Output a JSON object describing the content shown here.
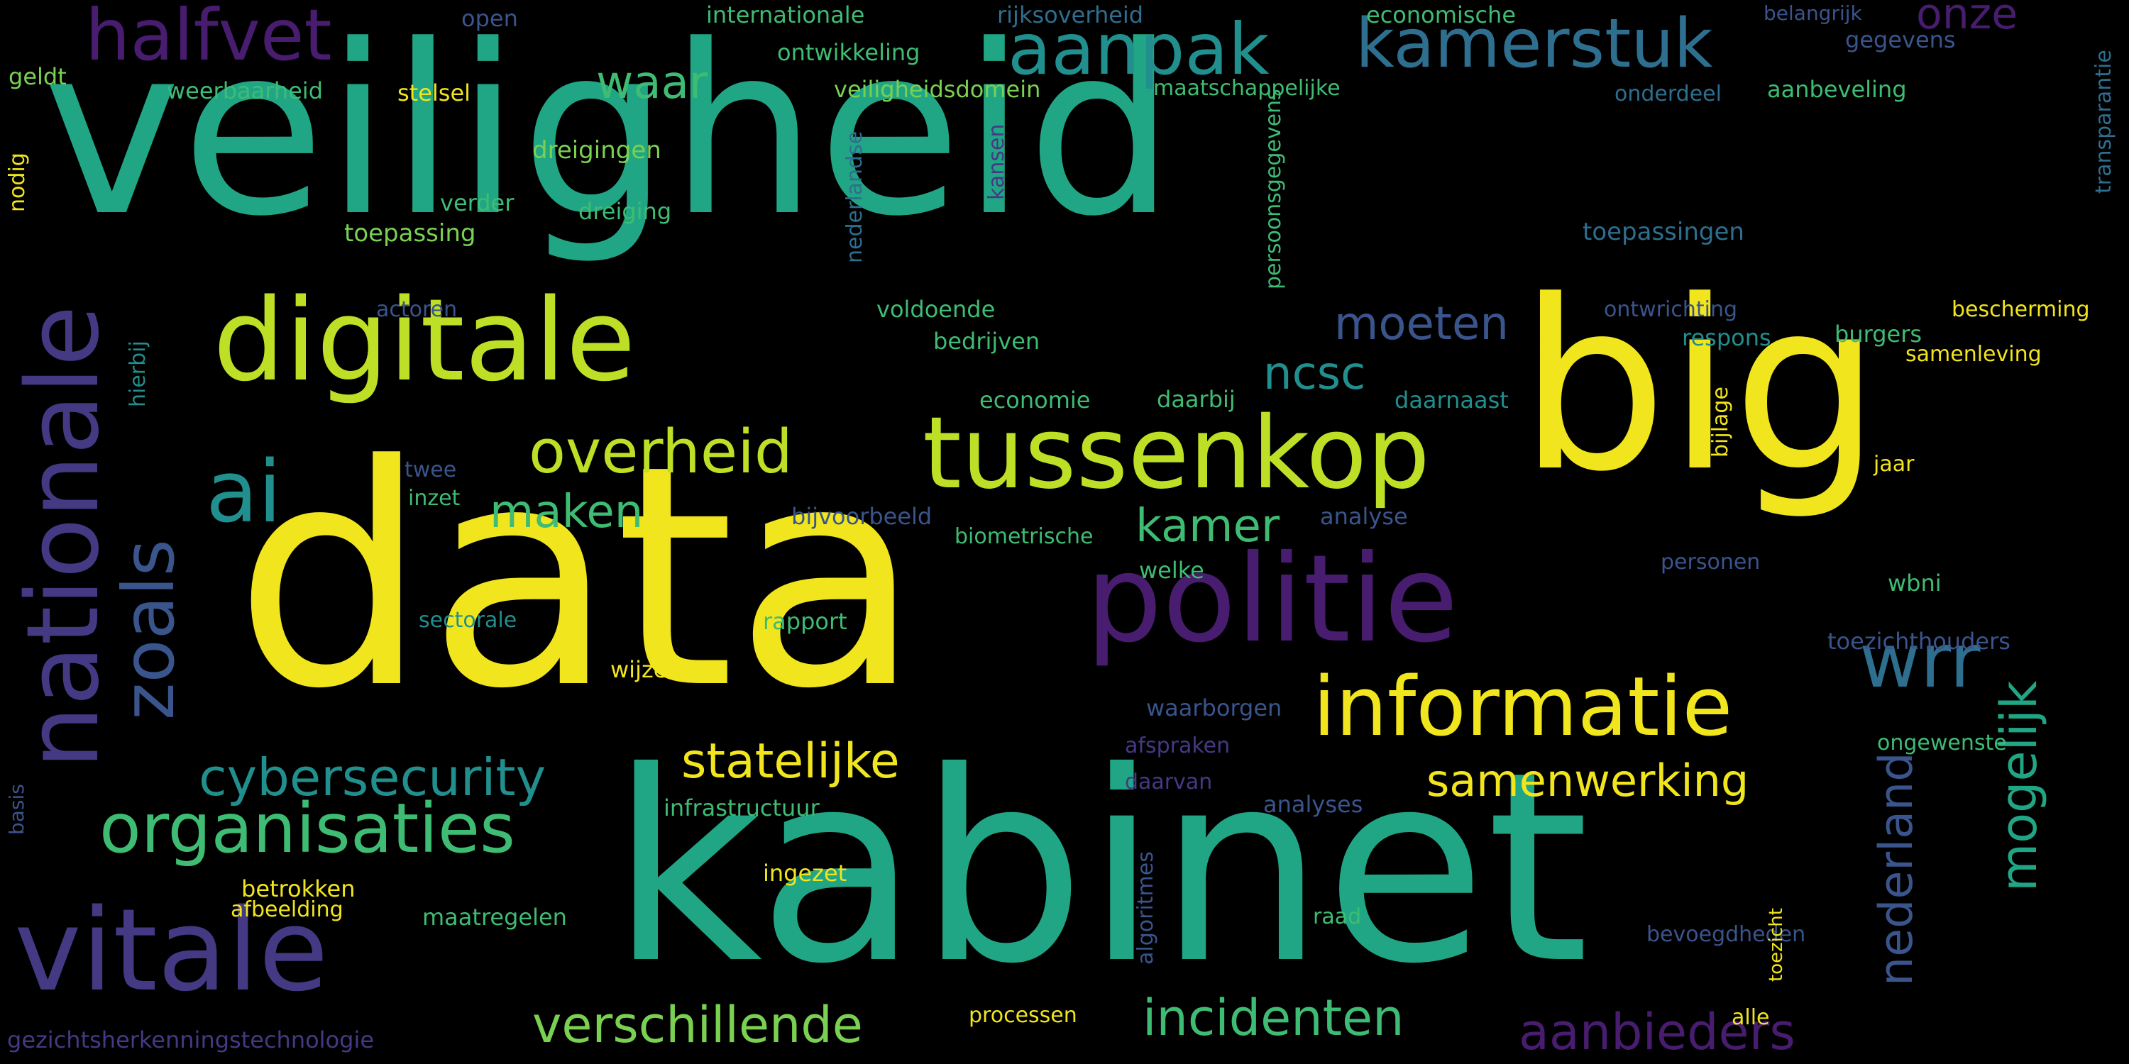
{
  "palette": {
    "background": "#000000",
    "yellow": "#f1e51d",
    "lime": "#bddf26",
    "lightgreen": "#7ad151",
    "green": "#3fbc73",
    "teal": "#21a685",
    "tealblue": "#218f8d",
    "blueteal": "#27808e",
    "steelblue": "#2e6e8e",
    "blue": "#3a548c",
    "indigo": "#443983",
    "purple": "#481c6e"
  },
  "words": [
    "veiligheid",
    "data",
    "kabinet",
    "big",
    "politie",
    "tussenkop",
    "digitale",
    "nationale",
    "vitale",
    "informatie",
    "organisaties",
    "halfvet",
    "aanpak",
    "kamerstuk",
    "wrr",
    "zoals",
    "mogelijk",
    "overheid",
    "statelijke",
    "cybersecurity",
    "samenwerking",
    "ai",
    "nederland",
    "incidenten",
    "verschillende",
    "aanbieders",
    "onze",
    "kamer",
    "maken",
    "moeten",
    "ncsc",
    "waar",
    "internationale",
    "rijksoverheid",
    "economische",
    "open",
    "ontwikkeling",
    "belangrijk",
    "gegevens",
    "geldt",
    "weerbaarheid",
    "stelsel",
    "veiligheidsdomein",
    "maatschappelijke",
    "onderdeel",
    "aanbeveling",
    "transparantie",
    "nodig",
    "dreigingen",
    "persoonsgegevens",
    "kansen",
    "nederlandse",
    "verder",
    "dreiging",
    "toepassing",
    "toepassingen",
    "actoren",
    "voldoende",
    "ontwrichting",
    "bescherming",
    "bedrijven",
    "respons",
    "burgers",
    "samenleving",
    "hierbij",
    "economie",
    "daarbij",
    "daarnaast",
    "bijlage",
    "twee",
    "jaar",
    "inzet",
    "analyse",
    "bijvoorbeeld",
    "biometrische",
    "welke",
    "personen",
    "wbni",
    "sectorale",
    "rapport",
    "toezichthouders",
    "wijze",
    "waarborgen",
    "afspraken",
    "ongewenste",
    "daarvan",
    "basis",
    "infrastructuur",
    "analyses",
    "algoritmes",
    "ingezet",
    "betrokken",
    "afbeelding",
    "maatregelen",
    "raad",
    "bevoegdheden",
    "toezicht",
    "processen",
    "alle",
    "gezichtsherkenningstechnologie"
  ]
}
